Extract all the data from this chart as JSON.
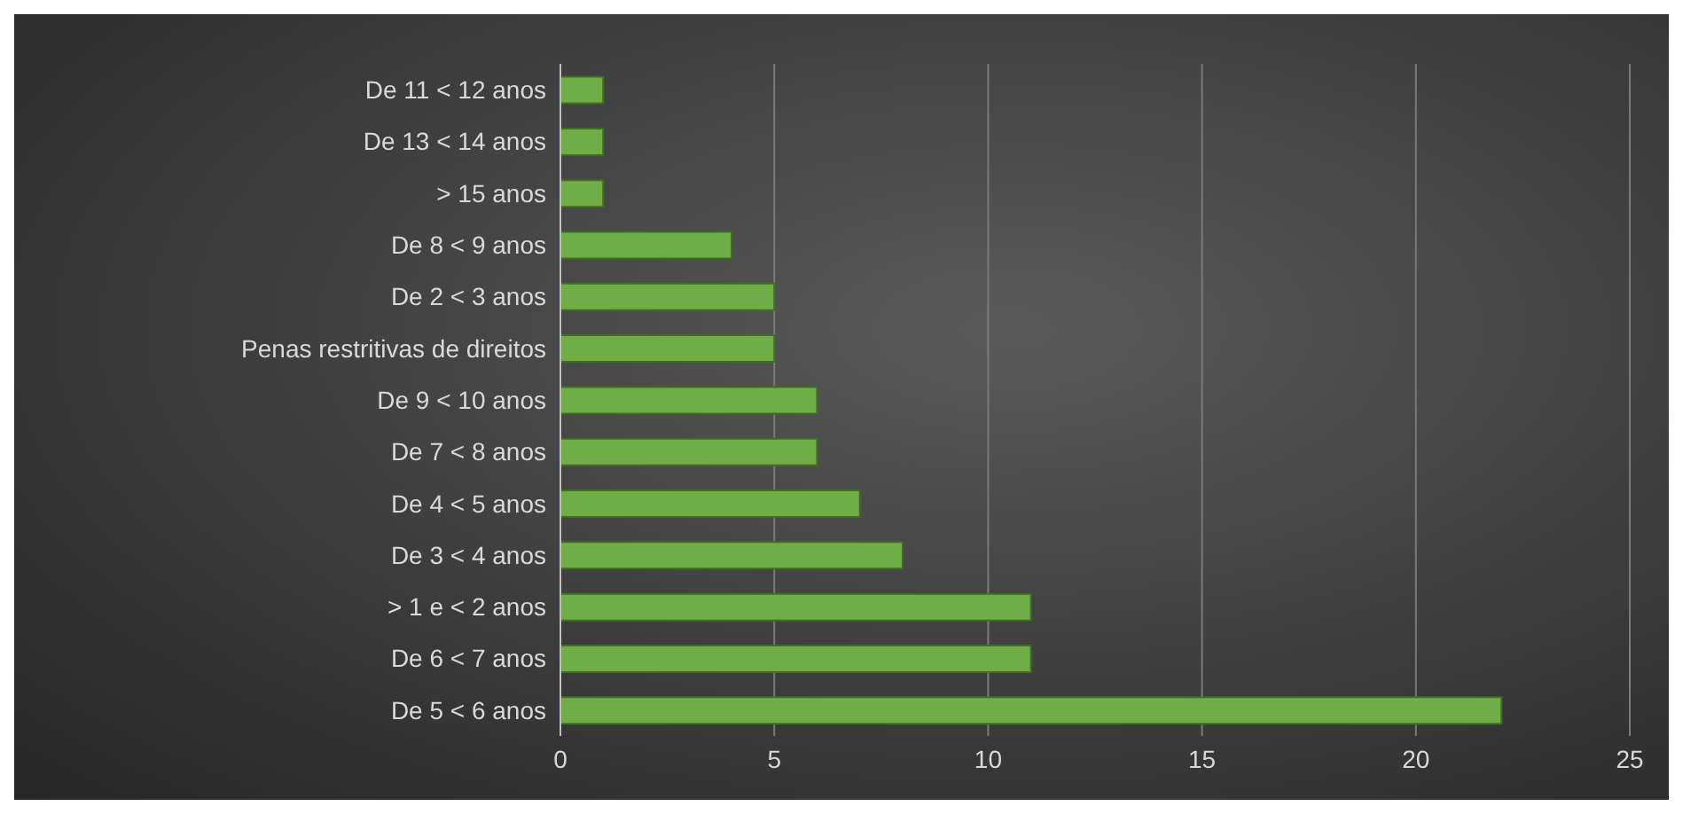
{
  "chart_data": {
    "type": "bar",
    "orientation": "horizontal",
    "categories": [
      "De 11 < 12 anos",
      "De 13 < 14 anos",
      "> 15 anos",
      "De 8 < 9 anos",
      "De 2 < 3 anos",
      "Penas restritivas de direitos",
      "De 9 <  10 anos",
      "De 7 < 8 anos",
      "De 4 < 5 anos",
      "De 3 < 4 anos",
      "> 1 e < 2 anos",
      "De 6 < 7 anos",
      "De 5 < 6 anos"
    ],
    "values": [
      1,
      1,
      1,
      4,
      5,
      5,
      6,
      6,
      7,
      8,
      11,
      11,
      22
    ],
    "color": "#70ad47",
    "xlim": [
      0,
      25
    ],
    "xticks": [
      0,
      5,
      10,
      15,
      20,
      25
    ],
    "grid": "x"
  }
}
